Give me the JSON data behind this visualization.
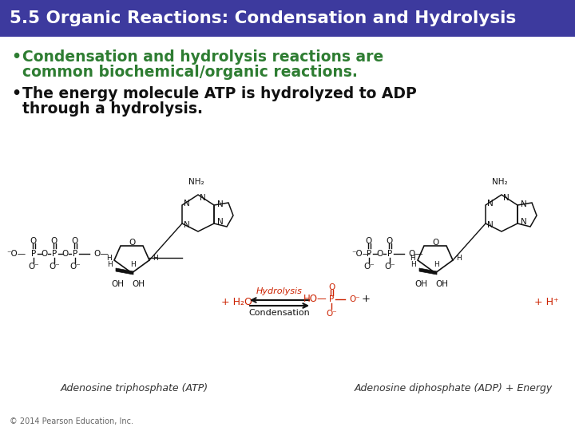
{
  "title": "5.5 Organic Reactions: Condensation and Hydrolysis",
  "title_bg_color": "#3d3a9e",
  "title_text_color": "#ffffff",
  "title_fontsize": 15.5,
  "bullet1_line1": "Condensation and hydrolysis reactions are",
  "bullet1_line2": "common biochemical/organic reactions.",
  "bullet1_color": "#2e7d32",
  "bullet2_line1": "The energy molecule ATP is hydrolyzed to ADP",
  "bullet2_line2": "through a hydrolysis.",
  "bullet2_color": "#111111",
  "bullet_fontsize": 13.5,
  "copyright_text": "© 2014 Pearson Education, Inc.",
  "copyright_fontsize": 7,
  "bg_color": "#ffffff",
  "caption_left": "Adenosine triphosphate (ATP)",
  "caption_right": "Adenosine diphosphate (ADP) + Energy",
  "caption_fontsize": 9,
  "caption_color": "#333333",
  "red_color": "#cc2200",
  "diagram_fontsize": 7.5
}
